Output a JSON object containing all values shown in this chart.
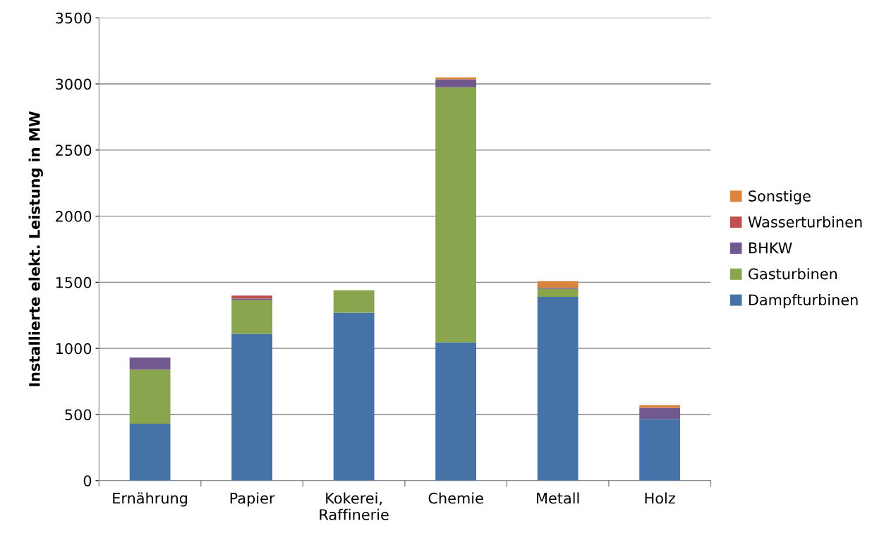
{
  "chart_data": {
    "type": "bar",
    "stacked": true,
    "ylabel": "Installierte elekt. Leistung in MW",
    "categories": [
      "Ernährung",
      "Papier",
      "Kokerei,\nRaffinerie",
      "Chemie",
      "Metall",
      "Holz"
    ],
    "series": [
      {
        "name": "Dampfturbinen",
        "color": "#4572a7",
        "values": [
          430,
          1110,
          1270,
          1045,
          1390,
          465
        ]
      },
      {
        "name": "Gasturbinen",
        "color": "#89a54e",
        "values": [
          410,
          255,
          170,
          1930,
          60,
          0
        ]
      },
      {
        "name": "BHKW",
        "color": "#71588f",
        "values": [
          90,
          12,
          0,
          60,
          8,
          85
        ]
      },
      {
        "name": "Wasserturbinen",
        "color": "#c0504d",
        "values": [
          0,
          23,
          0,
          0,
          0,
          0
        ]
      },
      {
        "name": "Sonstige",
        "color": "#db843d",
        "values": [
          0,
          0,
          0,
          15,
          50,
          20
        ]
      }
    ],
    "ylim": [
      0,
      3500
    ],
    "yticks": [
      0,
      500,
      1000,
      1500,
      2000,
      2500,
      3000,
      3500
    ],
    "grid": "y",
    "legend": "right"
  }
}
